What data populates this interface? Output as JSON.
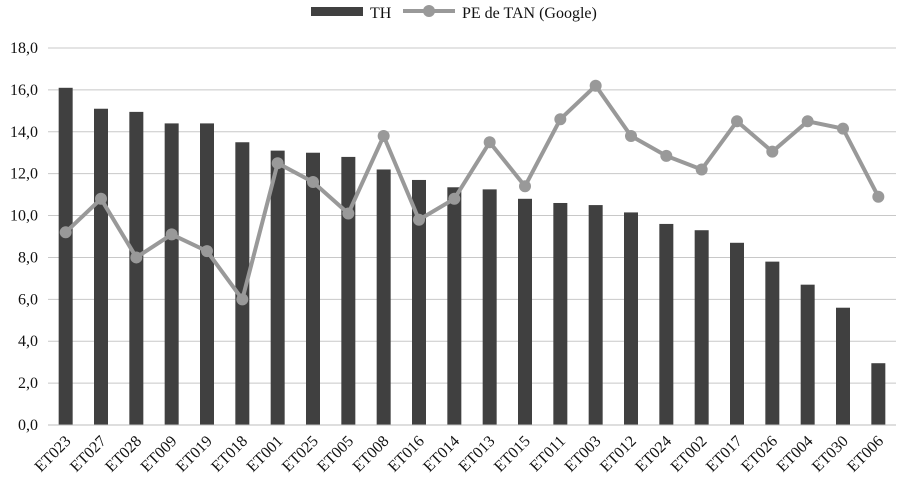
{
  "chart_data": {
    "type": "bar",
    "title": "",
    "xlabel": "",
    "ylabel": "",
    "ylim": [
      0,
      18
    ],
    "yticks": [
      "0,0",
      "2,0",
      "4,0",
      "6,0",
      "8,0",
      "10,0",
      "12,0",
      "14,0",
      "16,0",
      "18,0"
    ],
    "grid": true,
    "legend_position": "top-center",
    "categories": [
      "ET023",
      "ET027",
      "ET028",
      "ET009",
      "ET019",
      "ET018",
      "ET001",
      "ET025",
      "ET005",
      "ET008",
      "ET016",
      "ET014",
      "ET013",
      "ET015",
      "ET011",
      "ET003",
      "ET012",
      "ET024",
      "ET002",
      "ET017",
      "ET026",
      "ET004",
      "ET030",
      "ET006"
    ],
    "series": [
      {
        "name": "TH",
        "type": "bar",
        "color": "#404040",
        "values": [
          16.1,
          15.1,
          14.95,
          14.4,
          14.4,
          13.5,
          13.1,
          13.0,
          12.8,
          12.2,
          11.7,
          11.35,
          11.25,
          10.8,
          10.6,
          10.5,
          10.15,
          9.6,
          9.3,
          8.7,
          7.8,
          6.7,
          5.6,
          2.95
        ]
      },
      {
        "name": "PE de TAN (Google)",
        "type": "line",
        "color": "#999999",
        "values": [
          9.2,
          10.8,
          8.0,
          9.1,
          8.3,
          6.0,
          12.5,
          11.6,
          10.1,
          13.8,
          9.8,
          10.8,
          13.5,
          11.4,
          14.6,
          16.2,
          13.8,
          12.85,
          12.2,
          14.5,
          13.05,
          14.5,
          14.15,
          10.9
        ]
      }
    ]
  }
}
